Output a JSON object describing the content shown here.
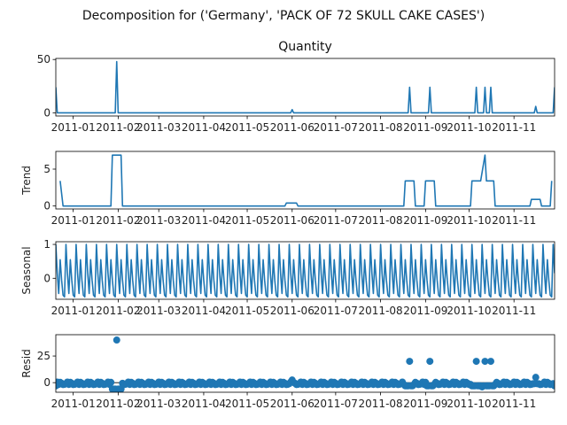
{
  "figure": {
    "suptitle": "Decomposition for ('Germany', 'PACK OF 72 SKULL CAKE CASES')",
    "line_color": "#1f77b4",
    "x_axis": {
      "type": "date",
      "start": "2010-12-20",
      "end": "2011-11-29",
      "tick_dates": [
        "2011-01-01",
        "2011-02-01",
        "2011-03-01",
        "2011-04-01",
        "2011-05-01",
        "2011-06-01",
        "2011-07-01",
        "2011-08-01",
        "2011-09-01",
        "2011-10-01",
        "2011-11-01"
      ],
      "tick_labels": [
        "2011-01",
        "2011-02",
        "2011-03",
        "2011-04",
        "2011-05",
        "2011-06",
        "2011-07",
        "2011-08",
        "2011-09",
        "2011-10",
        "2011-11"
      ]
    }
  },
  "chart_data": [
    {
      "type": "line",
      "title": "Quantity",
      "ylabel": "",
      "ylim": [
        -3,
        51
      ],
      "yticks": [
        0,
        50
      ],
      "baseline": 0,
      "points": [
        {
          "x": "2010-12-20",
          "y": 24
        },
        {
          "x": "2010-12-21",
          "y": 0
        },
        {
          "x": "2011-01-30",
          "y": 0
        },
        {
          "x": "2011-01-31",
          "y": 48
        },
        {
          "x": "2011-02-01",
          "y": 0
        },
        {
          "x": "2011-05-31",
          "y": 0
        },
        {
          "x": "2011-06-01",
          "y": 3
        },
        {
          "x": "2011-06-02",
          "y": 0
        },
        {
          "x": "2011-08-20",
          "y": 0
        },
        {
          "x": "2011-08-21",
          "y": 24
        },
        {
          "x": "2011-08-22",
          "y": 0
        },
        {
          "x": "2011-09-03",
          "y": 0
        },
        {
          "x": "2011-09-04",
          "y": 24
        },
        {
          "x": "2011-09-05",
          "y": 0
        },
        {
          "x": "2011-10-05",
          "y": 0
        },
        {
          "x": "2011-10-06",
          "y": 24
        },
        {
          "x": "2011-10-07",
          "y": 0
        },
        {
          "x": "2011-10-11",
          "y": 0
        },
        {
          "x": "2011-10-12",
          "y": 24
        },
        {
          "x": "2011-10-13",
          "y": 0
        },
        {
          "x": "2011-10-15",
          "y": 0
        },
        {
          "x": "2011-10-16",
          "y": 24
        },
        {
          "x": "2011-10-17",
          "y": 0
        },
        {
          "x": "2011-11-15",
          "y": 0
        },
        {
          "x": "2011-11-16",
          "y": 6
        },
        {
          "x": "2011-11-17",
          "y": 0
        },
        {
          "x": "2011-11-28",
          "y": 0
        },
        {
          "x": "2011-11-29",
          "y": 24
        }
      ]
    },
    {
      "type": "line",
      "title": "",
      "ylabel": "Trend",
      "ylim": [
        -0.4,
        7.4
      ],
      "yticks": [
        0,
        5
      ],
      "points": [
        {
          "x": "2010-12-23",
          "y": 3.4
        },
        {
          "x": "2010-12-25",
          "y": 0
        },
        {
          "x": "2011-01-27",
          "y": 0
        },
        {
          "x": "2011-01-28",
          "y": 6.9
        },
        {
          "x": "2011-02-03",
          "y": 6.9
        },
        {
          "x": "2011-02-04",
          "y": 0
        },
        {
          "x": "2011-05-27",
          "y": 0
        },
        {
          "x": "2011-05-28",
          "y": 0.4
        },
        {
          "x": "2011-06-04",
          "y": 0.4
        },
        {
          "x": "2011-06-05",
          "y": 0
        },
        {
          "x": "2011-08-17",
          "y": 0
        },
        {
          "x": "2011-08-18",
          "y": 3.4
        },
        {
          "x": "2011-08-24",
          "y": 3.4
        },
        {
          "x": "2011-08-25",
          "y": 0
        },
        {
          "x": "2011-08-31",
          "y": 0
        },
        {
          "x": "2011-09-01",
          "y": 3.4
        },
        {
          "x": "2011-09-07",
          "y": 3.4
        },
        {
          "x": "2011-09-08",
          "y": 0
        },
        {
          "x": "2011-10-02",
          "y": 0
        },
        {
          "x": "2011-10-03",
          "y": 3.4
        },
        {
          "x": "2011-10-09",
          "y": 3.4
        },
        {
          "x": "2011-10-12",
          "y": 6.9
        },
        {
          "x": "2011-10-13",
          "y": 3.4
        },
        {
          "x": "2011-10-18",
          "y": 3.4
        },
        {
          "x": "2011-10-19",
          "y": 0
        },
        {
          "x": "2011-11-12",
          "y": 0
        },
        {
          "x": "2011-11-13",
          "y": 0.9
        },
        {
          "x": "2011-11-19",
          "y": 0.9
        },
        {
          "x": "2011-11-20",
          "y": 0
        },
        {
          "x": "2011-11-26",
          "y": 0
        },
        {
          "x": "2011-11-27",
          "y": 3.4
        }
      ]
    },
    {
      "type": "line",
      "title": "",
      "ylabel": "Seasonal",
      "ylim": [
        -0.62,
        1.08
      ],
      "yticks": [
        0,
        1
      ],
      "period_days": 7,
      "pattern": [
        1.0,
        0.15,
        -0.45,
        0.55,
        -0.05,
        -0.5,
        -0.55
      ],
      "start": "2010-12-20",
      "end": "2011-11-29"
    },
    {
      "type": "scatter",
      "title": "",
      "ylabel": "Resid",
      "ylim": [
        -9,
        45
      ],
      "yticks": [
        0,
        25
      ],
      "baseline": 0,
      "all_days_start": "2010-12-20",
      "all_days_end": "2011-11-29",
      "background_values": [
        -0.9,
        0.6,
        -1.7,
        0.3,
        -0.6,
        -1.8,
        -1.6
      ],
      "outliers": [
        {
          "x": "2010-12-20",
          "y": -3
        },
        {
          "x": "2011-01-28",
          "y": -6
        },
        {
          "x": "2011-01-29",
          "y": -6
        },
        {
          "x": "2011-01-30",
          "y": -6
        },
        {
          "x": "2011-01-31",
          "y": 40
        },
        {
          "x": "2011-02-01",
          "y": -6
        },
        {
          "x": "2011-02-02",
          "y": -6
        },
        {
          "x": "2011-02-03",
          "y": -6
        },
        {
          "x": "2011-06-01",
          "y": 2.5
        },
        {
          "x": "2011-08-18",
          "y": -3
        },
        {
          "x": "2011-08-19",
          "y": -3
        },
        {
          "x": "2011-08-20",
          "y": -3
        },
        {
          "x": "2011-08-21",
          "y": 20
        },
        {
          "x": "2011-08-22",
          "y": -3
        },
        {
          "x": "2011-08-23",
          "y": -3
        },
        {
          "x": "2011-09-02",
          "y": -3
        },
        {
          "x": "2011-09-03",
          "y": -3
        },
        {
          "x": "2011-09-04",
          "y": 20
        },
        {
          "x": "2011-09-05",
          "y": -3
        },
        {
          "x": "2011-09-06",
          "y": -3
        },
        {
          "x": "2011-10-03",
          "y": -3
        },
        {
          "x": "2011-10-04",
          "y": -3
        },
        {
          "x": "2011-10-05",
          "y": -3
        },
        {
          "x": "2011-10-06",
          "y": 20
        },
        {
          "x": "2011-10-07",
          "y": -3
        },
        {
          "x": "2011-10-08",
          "y": -3
        },
        {
          "x": "2011-10-09",
          "y": -3
        },
        {
          "x": "2011-10-10",
          "y": -4
        },
        {
          "x": "2011-10-11",
          "y": -3
        },
        {
          "x": "2011-10-12",
          "y": 20
        },
        {
          "x": "2011-10-13",
          "y": -3
        },
        {
          "x": "2011-10-14",
          "y": -3
        },
        {
          "x": "2011-10-15",
          "y": -3
        },
        {
          "x": "2011-10-16",
          "y": 20
        },
        {
          "x": "2011-10-17",
          "y": -3
        },
        {
          "x": "2011-10-18",
          "y": -3
        },
        {
          "x": "2011-11-14",
          "y": -1
        },
        {
          "x": "2011-11-15",
          "y": -1
        },
        {
          "x": "2011-11-16",
          "y": 5
        },
        {
          "x": "2011-11-17",
          "y": -1
        },
        {
          "x": "2011-11-18",
          "y": -1
        },
        {
          "x": "2011-11-29",
          "y": -3
        }
      ]
    }
  ]
}
